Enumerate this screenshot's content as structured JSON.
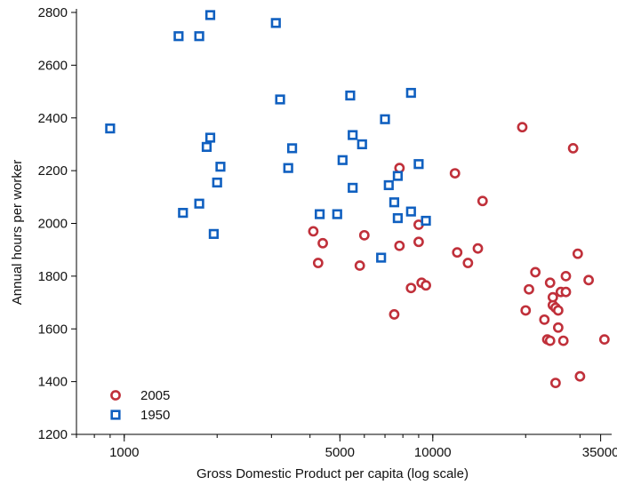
{
  "chart_data": {
    "type": "scatter",
    "title": "",
    "xlabel": "Gross Domestic Product per capita (log scale)",
    "ylabel": "Annual hours per worker",
    "x_scale": "log",
    "xlim": [
      700,
      38000
    ],
    "ylim": [
      1200,
      2800
    ],
    "x_ticks": [
      1000,
      5000,
      10000,
      35000
    ],
    "x_tick_labels": [
      "1000",
      "5000",
      "10000",
      "35000"
    ],
    "y_ticks": [
      1200,
      1400,
      1600,
      1800,
      2000,
      2200,
      2400,
      2600,
      2800
    ],
    "y_tick_labels": [
      "1200",
      "1400",
      "1600",
      "1800",
      "2000",
      "2200",
      "2400",
      "2600",
      "2800"
    ],
    "grid": false,
    "legend_position": "bottom-left",
    "series": [
      {
        "name": "2005",
        "marker": "circle",
        "color": "#c0303a",
        "points": [
          [
            4100,
            1970
          ],
          [
            4400,
            1925
          ],
          [
            4250,
            1850
          ],
          [
            6000,
            1955
          ],
          [
            5800,
            1840
          ],
          [
            7800,
            2210
          ],
          [
            7800,
            1915
          ],
          [
            7500,
            1655
          ],
          [
            9000,
            1995
          ],
          [
            9000,
            1930
          ],
          [
            9200,
            1775
          ],
          [
            9500,
            1765
          ],
          [
            8500,
            1755
          ],
          [
            11800,
            2190
          ],
          [
            12000,
            1890
          ],
          [
            13000,
            1850
          ],
          [
            14000,
            1905
          ],
          [
            14500,
            2085
          ],
          [
            19500,
            2365
          ],
          [
            20000,
            1670
          ],
          [
            20500,
            1750
          ],
          [
            21500,
            1815
          ],
          [
            23000,
            1635
          ],
          [
            23500,
            1560
          ],
          [
            24000,
            1555
          ],
          [
            24000,
            1775
          ],
          [
            24500,
            1690
          ],
          [
            24500,
            1720
          ],
          [
            25000,
            1680
          ],
          [
            25500,
            1670
          ],
          [
            25500,
            1605
          ],
          [
            26000,
            1740
          ],
          [
            26500,
            1555
          ],
          [
            27000,
            1740
          ],
          [
            27000,
            1800
          ],
          [
            28500,
            2285
          ],
          [
            29500,
            1885
          ],
          [
            30000,
            1420
          ],
          [
            25000,
            1395
          ],
          [
            32000,
            1785
          ],
          [
            36000,
            1560
          ]
        ]
      },
      {
        "name": "1950",
        "marker": "square",
        "color": "#1060c0",
        "points": [
          [
            900,
            2360
          ],
          [
            1500,
            2710
          ],
          [
            1750,
            2710
          ],
          [
            1900,
            2790
          ],
          [
            1550,
            2040
          ],
          [
            1750,
            2075
          ],
          [
            1850,
            2290
          ],
          [
            1900,
            2325
          ],
          [
            1950,
            1960
          ],
          [
            2000,
            2155
          ],
          [
            2050,
            2215
          ],
          [
            3100,
            2760
          ],
          [
            3200,
            2470
          ],
          [
            3500,
            2285
          ],
          [
            3400,
            2210
          ],
          [
            4300,
            2035
          ],
          [
            4900,
            2035
          ],
          [
            5100,
            2240
          ],
          [
            5400,
            2485
          ],
          [
            5500,
            2135
          ],
          [
            5500,
            2335
          ],
          [
            5900,
            2300
          ],
          [
            6800,
            1870
          ],
          [
            7000,
            2395
          ],
          [
            7200,
            2145
          ],
          [
            7500,
            2080
          ],
          [
            7700,
            2180
          ],
          [
            7700,
            2020
          ],
          [
            8500,
            2495
          ],
          [
            8500,
            2045
          ],
          [
            9000,
            2225
          ],
          [
            9500,
            2010
          ]
        ]
      }
    ]
  }
}
